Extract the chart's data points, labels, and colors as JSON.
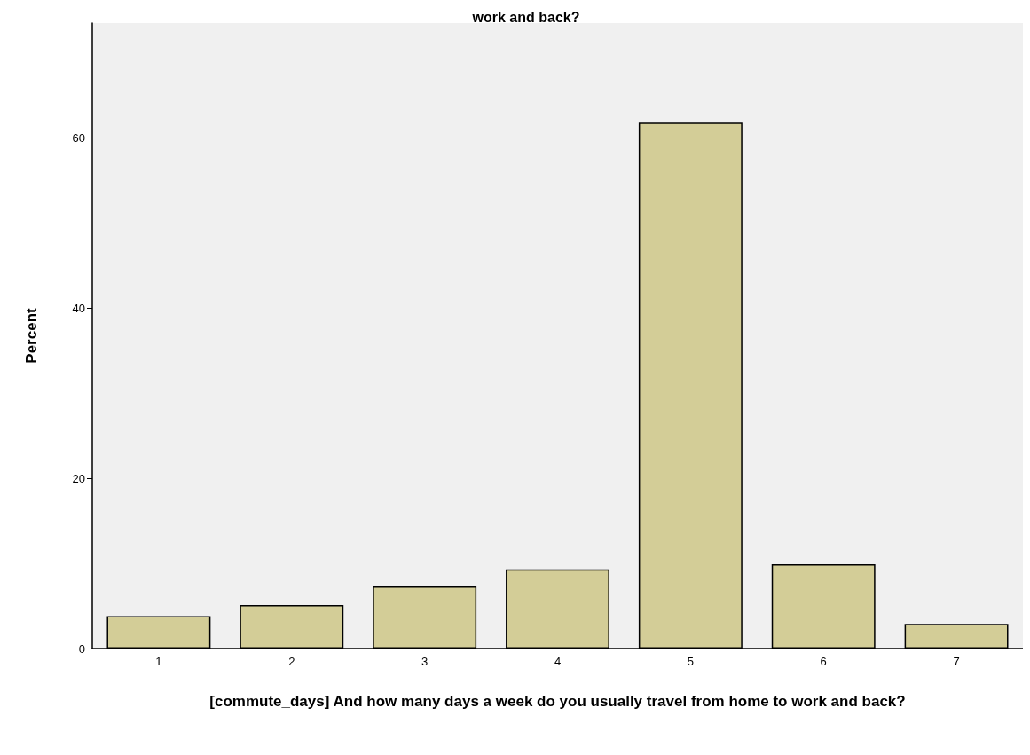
{
  "chart_data": {
    "type": "bar",
    "title": "work and back?",
    "xlabel": "[commute_days] And how many days a week do you usually travel from home to work and back?",
    "ylabel": "Percent",
    "categories": [
      "1",
      "2",
      "3",
      "4",
      "5",
      "6",
      "7"
    ],
    "values": [
      3.8,
      5.1,
      7.3,
      9.3,
      61.8,
      9.9,
      2.9
    ],
    "color": "#d3cd97",
    "ylim": [
      0,
      73.5
    ],
    "yticks": [
      0,
      20,
      40,
      60
    ],
    "grid": false
  }
}
